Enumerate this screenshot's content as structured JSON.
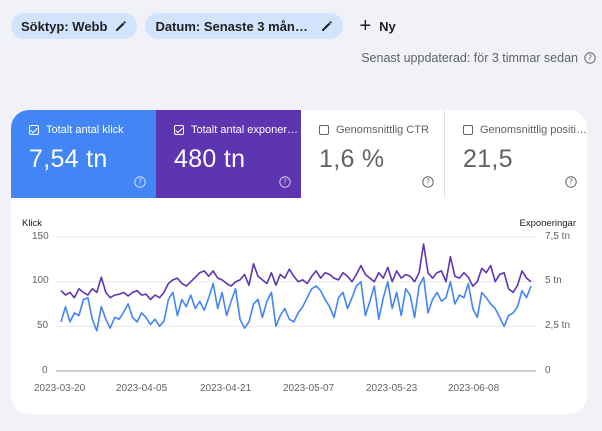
{
  "filters": [
    {
      "label": "Söktyp: Webb"
    },
    {
      "label": "Datum: Senaste 3 månader..."
    }
  ],
  "new_label": "Ny",
  "updated_text": "Senast uppdaterad: för 3 timmar sedan",
  "metrics": [
    {
      "label": "Totalt antal klick",
      "value": "7,54 tn",
      "checked": true
    },
    {
      "label": "Totalt antal exponeringar",
      "value": "480 tn",
      "checked": true
    },
    {
      "label": "Genomsnittlig CTR",
      "value": "1,6 %",
      "checked": false
    },
    {
      "label": "Genomsnittlig position",
      "value": "21,5",
      "checked": false
    }
  ],
  "colors": {
    "clicks": "#4285f4",
    "impressions": "#5e35b1"
  },
  "chart_data": {
    "type": "line",
    "left_axis_label": "Klick",
    "right_axis_label": "Exponeringar",
    "left_ticks": [
      "150",
      "100",
      "50",
      "0"
    ],
    "right_ticks": [
      "7,5 tn",
      "5 tn",
      "2,5 tn",
      "0"
    ],
    "left_range": [
      0,
      150
    ],
    "x_labels": [
      "2023-03-20",
      "2023-04-05",
      "2023-04-21",
      "2023-05-07",
      "2023-05-23",
      "2023-06-08"
    ],
    "series": [
      {
        "name": "Totalt antal klick",
        "axis": "left",
        "values": [
          55,
          72,
          55,
          65,
          62,
          80,
          82,
          58,
          45,
          72,
          58,
          48,
          60,
          58,
          66,
          75,
          60,
          55,
          65,
          60,
          52,
          58,
          50,
          56,
          80,
          88,
          62,
          80,
          72,
          85,
          70,
          78,
          68,
          82,
          98,
          70,
          88,
          62,
          78,
          92,
          58,
          48,
          55,
          75,
          80,
          60,
          78,
          88,
          50,
          62,
          70,
          58,
          55,
          65,
          72,
          82,
          92,
          95,
          90,
          80,
          72,
          60,
          82,
          88,
          70,
          82,
          95,
          100,
          62,
          78,
          95,
          58,
          82,
          100,
          70,
          88,
          62,
          92,
          85,
          60,
          95,
          105,
          65,
          80,
          88,
          78,
          82,
          100,
          75,
          85,
          82,
          98,
          70,
          60,
          88,
          82,
          75,
          70,
          60,
          50,
          62,
          65,
          72,
          90,
          82,
          95
        ]
      },
      {
        "name": "Totalt antal exponeringar",
        "axis": "left",
        "values": [
          90,
          85,
          88,
          82,
          92,
          88,
          85,
          92,
          88,
          105,
          88,
          82,
          85,
          86,
          88,
          84,
          88,
          90,
          85,
          86,
          80,
          85,
          82,
          88,
          98,
          102,
          104,
          98,
          95,
          100,
          105,
          110,
          112,
          106,
          112,
          104,
          102,
          98,
          95,
          100,
          102,
          108,
          96,
          120,
          106,
          102,
          98,
          110,
          96,
          108,
          104,
          114,
          106,
          100,
          102,
          98,
          106,
          112,
          104,
          110,
          108,
          104,
          102,
          110,
          106,
          100,
          108,
          118,
          108,
          104,
          100,
          110,
          104,
          116,
          100,
          112,
          104,
          108,
          106,
          100,
          110,
          142,
          110,
          104,
          110,
          112,
          100,
          128,
          106,
          104,
          110,
          105,
          95,
          100,
          115,
          110,
          118,
          100,
          108,
          110,
          92,
          88,
          96,
          112,
          104,
          100
        ]
      }
    ]
  }
}
